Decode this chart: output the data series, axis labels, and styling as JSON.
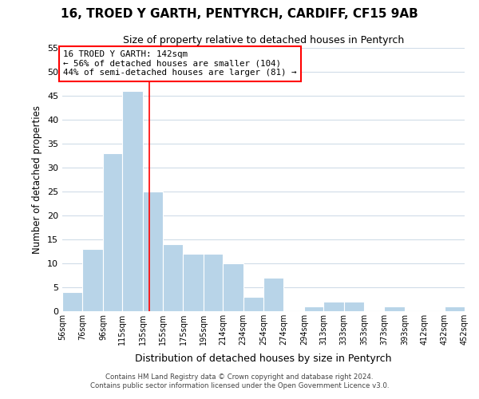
{
  "title": "16, TROED Y GARTH, PENTYRCH, CARDIFF, CF15 9AB",
  "subtitle": "Size of property relative to detached houses in Pentyrch",
  "xlabel": "Distribution of detached houses by size in Pentyrch",
  "ylabel": "Number of detached properties",
  "bar_color": "#b8d4e8",
  "background_color": "#ffffff",
  "grid_color": "#d0dce8",
  "bins": [
    56,
    76,
    96,
    115,
    135,
    155,
    175,
    195,
    214,
    234,
    254,
    274,
    294,
    313,
    333,
    353,
    373,
    393,
    412,
    432,
    452
  ],
  "counts": [
    4,
    13,
    33,
    46,
    25,
    14,
    12,
    12,
    10,
    3,
    7,
    0,
    1,
    2,
    2,
    0,
    1,
    0,
    0,
    1
  ],
  "tick_labels": [
    "56sqm",
    "76sqm",
    "96sqm",
    "115sqm",
    "135sqm",
    "155sqm",
    "175sqm",
    "195sqm",
    "214sqm",
    "234sqm",
    "254sqm",
    "274sqm",
    "294sqm",
    "313sqm",
    "333sqm",
    "353sqm",
    "373sqm",
    "393sqm",
    "412sqm",
    "432sqm",
    "452sqm"
  ],
  "ylim": [
    0,
    55
  ],
  "yticks": [
    0,
    5,
    10,
    15,
    20,
    25,
    30,
    35,
    40,
    45,
    50,
    55
  ],
  "red_line_x": 142,
  "annotation_line1": "16 TROED Y GARTH: 142sqm",
  "annotation_line2": "← 56% of detached houses are smaller (104)",
  "annotation_line3": "44% of semi-detached houses are larger (81) →",
  "footer_line1": "Contains HM Land Registry data © Crown copyright and database right 2024.",
  "footer_line2": "Contains public sector information licensed under the Open Government Licence v3.0."
}
